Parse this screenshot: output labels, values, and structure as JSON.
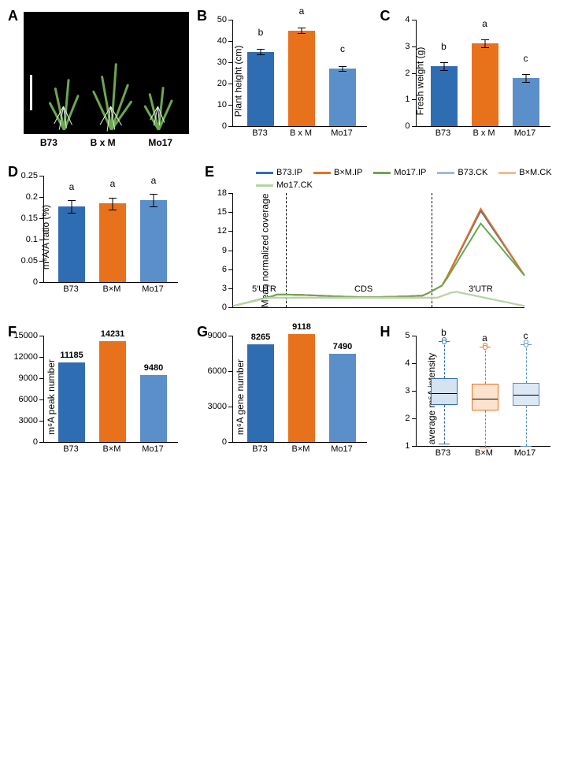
{
  "colors": {
    "B73": "#2f6db3",
    "BxM": "#e8711c",
    "Mo17": "#5a8fc9",
    "B73_light": "#9cb9e0",
    "BxM_light": "#f4bb8f",
    "Mo17_light": "#b3d5a3",
    "Mo17_IP": "#6aa84f"
  },
  "panelA": {
    "labels": [
      "B73",
      "B x M",
      "Mo17"
    ]
  },
  "panelB": {
    "ylabel": "Plant height (cm)",
    "ymax": 50,
    "ytick": 10,
    "categories": [
      "B73",
      "B x M",
      "Mo17"
    ],
    "values": [
      35,
      45,
      27
    ],
    "errors": [
      1.3,
      1.2,
      1.0
    ],
    "sig": [
      "b",
      "a",
      "c"
    ]
  },
  "panelC": {
    "ylabel": "Fresh weight (g)",
    "ymax": 4,
    "ytick": 1,
    "categories": [
      "B73",
      "B x M",
      "Mo17"
    ],
    "values": [
      2.25,
      3.1,
      1.8
    ],
    "errors": [
      0.15,
      0.15,
      0.15
    ],
    "sig": [
      "b",
      "a",
      "c"
    ]
  },
  "panelD": {
    "ylabel": "m⁶A/A ratio (%)",
    "ymax": 0.25,
    "ytick": 0.05,
    "categories": [
      "B73",
      "B×M",
      "Mo17"
    ],
    "values": [
      0.178,
      0.185,
      0.193
    ],
    "errors": [
      0.015,
      0.014,
      0.015
    ],
    "sig": [
      "a",
      "a",
      "a"
    ]
  },
  "panelE": {
    "ylabel": "Mean normalized coverage",
    "ymax": 18,
    "ytick": 3,
    "legend": [
      {
        "label": "B73.IP",
        "color": "#2f6db3"
      },
      {
        "label": "B×M.IP",
        "color": "#e8711c"
      },
      {
        "label": "Mo17.IP",
        "color": "#6aa84f"
      },
      {
        "label": "B73.CK",
        "color": "#9cb9e0"
      },
      {
        "label": "B×M.CK",
        "color": "#f4bb8f"
      },
      {
        "label": "Mo17.CK",
        "color": "#b3d5a3"
      }
    ],
    "regions": [
      "5′UTR",
      "CDS",
      "3′UTR"
    ],
    "boundaries": [
      0.18,
      0.68
    ]
  },
  "panelF": {
    "ylabel": "m⁶A peak number",
    "ymax": 15000,
    "ytick": 3000,
    "categories": [
      "B73",
      "B×M",
      "Mo17"
    ],
    "values": [
      11185,
      14231,
      9480
    ],
    "valLabels": [
      "11185",
      "14231",
      "9480"
    ]
  },
  "panelG": {
    "ylabel": "m⁶A gene number",
    "ymax": 9000,
    "ytick": 3000,
    "categories": [
      "B73",
      "B×M",
      "Mo17"
    ],
    "values": [
      8265,
      9118,
      7490
    ],
    "valLabels": [
      "8265",
      "9118",
      "7490"
    ]
  },
  "panelH": {
    "ylabel": "average m⁶A intensity",
    "ymin": 1,
    "ymax": 5,
    "ytick": 1,
    "categories": [
      "B73",
      "B×M",
      "Mo17"
    ],
    "sig": [
      "b",
      "a",
      "c"
    ],
    "boxes": [
      {
        "q1": 2.5,
        "med": 2.95,
        "q3": 3.45,
        "wlo": 1.1,
        "whi": 4.8
      },
      {
        "q1": 2.3,
        "med": 2.75,
        "q3": 3.25,
        "wlo": 0.95,
        "whi": 4.6
      },
      {
        "q1": 2.45,
        "med": 2.9,
        "q3": 3.3,
        "wlo": 1.0,
        "whi": 4.7
      }
    ]
  }
}
